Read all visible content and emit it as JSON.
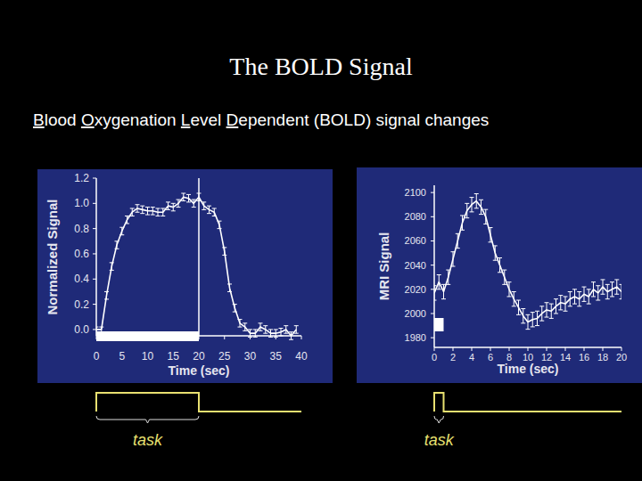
{
  "slide": {
    "title": "The BOLD Signal",
    "subtitle": "Blood Oxygenation Level Dependent (BOLD) signal changes"
  },
  "chart_data": [
    {
      "type": "line",
      "xlabel": "Time (sec)",
      "ylabel": "Normalized Signal",
      "xlim": [
        0,
        40
      ],
      "ylim": [
        -0.05,
        1.2
      ],
      "xticks": [
        0,
        5,
        10,
        15,
        20,
        25,
        30,
        35,
        40
      ],
      "yticks": [
        {
          "value": 0,
          "label": "0.0"
        },
        {
          "value": 0.2,
          "label": "0.2"
        },
        {
          "value": 0.4,
          "label": "0.4"
        },
        {
          "value": 0.6,
          "label": "0.6"
        },
        {
          "value": 0.8,
          "label": "0.8"
        },
        {
          "value": 1.0,
          "label": "1.0"
        },
        {
          "value": 1.2,
          "label": "1.2"
        }
      ],
      "grid": false,
      "x": [
        0,
        1,
        2,
        3,
        4,
        5,
        6,
        7,
        8,
        9,
        10,
        11,
        12,
        13,
        14,
        15,
        16,
        17,
        18,
        19,
        20,
        21,
        22,
        23,
        24,
        25,
        26,
        27,
        28,
        29,
        30,
        31,
        32,
        33,
        34,
        35,
        36,
        37,
        38,
        39
      ],
      "series": [
        {
          "color": "#ffffff",
          "values": [
            0.0,
            0.0,
            0.27,
            0.5,
            0.67,
            0.78,
            0.87,
            0.93,
            0.96,
            0.95,
            0.94,
            0.94,
            0.93,
            0.93,
            0.98,
            0.97,
            1.0,
            1.05,
            1.04,
            1.0,
            1.05,
            0.98,
            0.95,
            0.93,
            0.83,
            0.62,
            0.33,
            0.17,
            0.05,
            0.02,
            -0.03,
            -0.03,
            0.02,
            0.0,
            -0.03,
            -0.03,
            -0.02,
            0.0,
            -0.05,
            0.0
          ],
          "errors": [
            0.02,
            0.02,
            0.03,
            0.03,
            0.03,
            0.03,
            0.03,
            0.03,
            0.03,
            0.03,
            0.03,
            0.03,
            0.03,
            0.03,
            0.03,
            0.03,
            0.03,
            0.03,
            0.03,
            0.03,
            0.03,
            0.03,
            0.03,
            0.03,
            0.03,
            0.03,
            0.03,
            0.03,
            0.03,
            0.03,
            0.03,
            0.03,
            0.03,
            0.03,
            0.03,
            0.03,
            0.03,
            0.03,
            0.03,
            0.03
          ]
        }
      ],
      "task": [
        0,
        20
      ],
      "task_label": "task"
    },
    {
      "type": "line",
      "xlabel": "Time (sec)",
      "ylabel": "MRI Signal",
      "xlim": [
        0,
        20
      ],
      "ylim": [
        1972,
        2106
      ],
      "xticks": [
        0,
        2,
        4,
        6,
        8,
        10,
        12,
        14,
        16,
        18,
        20
      ],
      "yticks": [
        1980,
        2000,
        2020,
        2040,
        2060,
        2080,
        2100
      ],
      "grid": false,
      "x": [
        0,
        0.5,
        1,
        1.5,
        2,
        2.5,
        3,
        3.5,
        4,
        4.5,
        5,
        5.5,
        6,
        6.5,
        7,
        7.5,
        8,
        8.5,
        9,
        9.5,
        10,
        10.5,
        11,
        11.5,
        12,
        12.5,
        13,
        13.5,
        14,
        14.5,
        15,
        15.5,
        16,
        16.5,
        17,
        17.5,
        18,
        18.5,
        19,
        19.5,
        20
      ],
      "series": [
        {
          "color": "#ffffff",
          "values": [
            2017,
            2026,
            2018,
            2030,
            2045,
            2060,
            2075,
            2085,
            2090,
            2093,
            2088,
            2080,
            2065,
            2050,
            2040,
            2030,
            2020,
            2012,
            2005,
            1998,
            1993,
            1995,
            1996,
            2000,
            2003,
            2002,
            2006,
            2009,
            2008,
            2012,
            2014,
            2012,
            2016,
            2014,
            2020,
            2017,
            2022,
            2018,
            2020,
            2022,
            2018
          ],
          "errors": [
            6,
            6,
            6,
            6,
            6,
            6,
            6,
            6,
            6,
            6,
            6,
            6,
            6,
            6,
            6,
            6,
            6,
            6,
            6,
            6,
            6,
            6,
            6,
            6,
            6,
            6,
            6,
            6,
            6,
            6,
            6,
            6,
            6,
            6,
            6,
            6,
            6,
            6,
            6,
            6,
            6
          ]
        }
      ],
      "task": [
        0,
        1
      ],
      "task_label": "task"
    }
  ]
}
